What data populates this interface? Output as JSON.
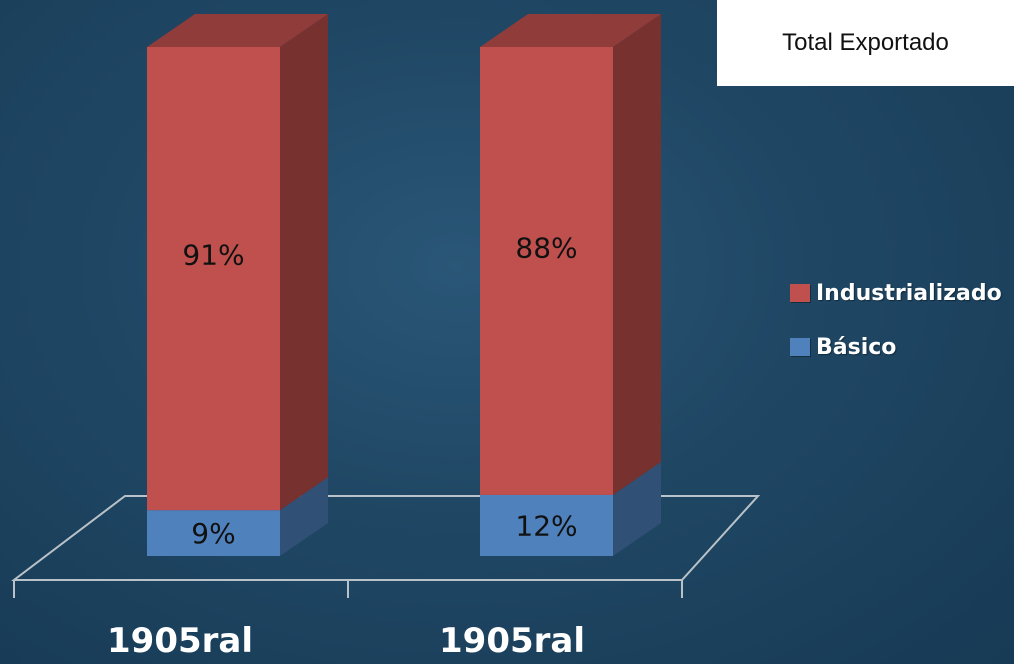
{
  "chart_data": {
    "type": "bar",
    "stacked": true,
    "three_d": true,
    "title": "Total Exportado",
    "categories": [
      "1905ral",
      "1905ral"
    ],
    "series": [
      {
        "name": "Básico",
        "values": [
          9,
          12
        ],
        "labels": [
          "9%",
          "12%"
        ],
        "color": "#4f81bd"
      },
      {
        "name": "Industrializado",
        "values": [
          91,
          88
        ],
        "labels": [
          "91%",
          "88%"
        ],
        "color": "#c0504d"
      }
    ],
    "ylim": [
      0,
      100
    ],
    "legend_position": "right",
    "grid": false
  },
  "colors": {
    "background": "#1f4764",
    "industrializado": "#c0504d",
    "basico": "#4f81bd",
    "floor_line": "#b9c2c9"
  }
}
